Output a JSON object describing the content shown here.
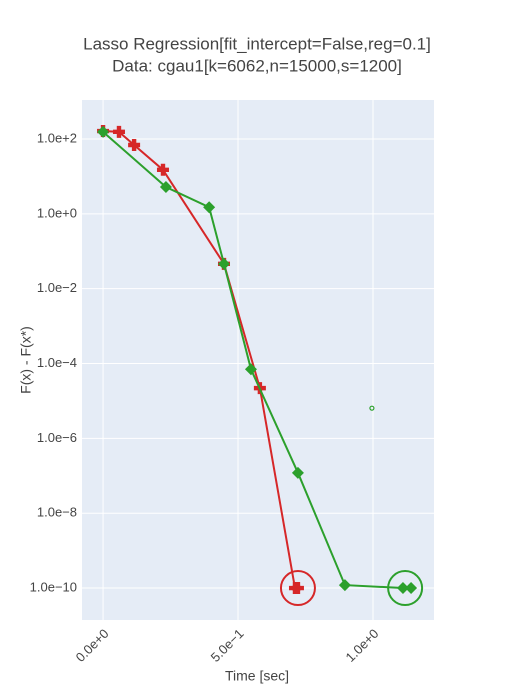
{
  "chart_data": {
    "type": "line",
    "title": [
      "Lasso Regression[fit_intercept=False,reg=0.1]",
      "Data: cgau1[k=6062,n=15000,s=1200]"
    ],
    "x_label": "Time [sec]",
    "y_label": "F(x) - F(x*)",
    "log_y": true,
    "grid": true,
    "xlim": [
      -0.078,
      1.226
    ],
    "ylim": [
      1.4e-11,
      1100
    ],
    "xticks": [
      {
        "value": 0,
        "label": "0.0e+0"
      },
      {
        "value": 0.5,
        "label": "5.0e−1"
      },
      {
        "value": 1,
        "label": "1.0e+0"
      }
    ],
    "yticks": [
      {
        "value": 100,
        "label": "1.0e+2"
      },
      {
        "value": 1,
        "label": "1.0e+0"
      },
      {
        "value": 0.01,
        "label": "1.0e−2"
      },
      {
        "value": 0.0001,
        "label": "1.0e−4"
      },
      {
        "value": 1e-06,
        "label": "1.0e−6"
      },
      {
        "value": 1e-08,
        "label": "1.0e−8"
      },
      {
        "value": 1e-10,
        "label": "1.0e−10"
      }
    ],
    "series": [
      {
        "color": "#d62728",
        "marker": "cross",
        "x": [
          0,
          0.059,
          0.115,
          0.222,
          0.448,
          0.581,
          0.711,
          0.722
        ],
        "values": [
          163,
          155,
          69,
          15,
          0.046,
          2.2e-05,
          1e-10,
          1e-10
        ]
      },
      {
        "color": "#2ca02c",
        "marker": "diamond",
        "x": [
          0,
          0.233,
          0.393,
          0.448,
          0.548,
          0.722,
          0.896,
          1.111,
          1.141
        ],
        "values": [
          155,
          5.2,
          1.5,
          0.046,
          7e-05,
          1.2e-07,
          1.2e-10,
          1e-10,
          1e-10
        ]
      }
    ],
    "highlights": [
      {
        "x": 0.722,
        "y": 1e-10,
        "color": "#d62728"
      },
      {
        "x": 1.119,
        "y": 1e-10,
        "color": "#2ca02c"
      }
    ],
    "outliers": [
      {
        "x": 0.996,
        "y": 6.4e-06,
        "color": "#2ca02c"
      }
    ]
  }
}
